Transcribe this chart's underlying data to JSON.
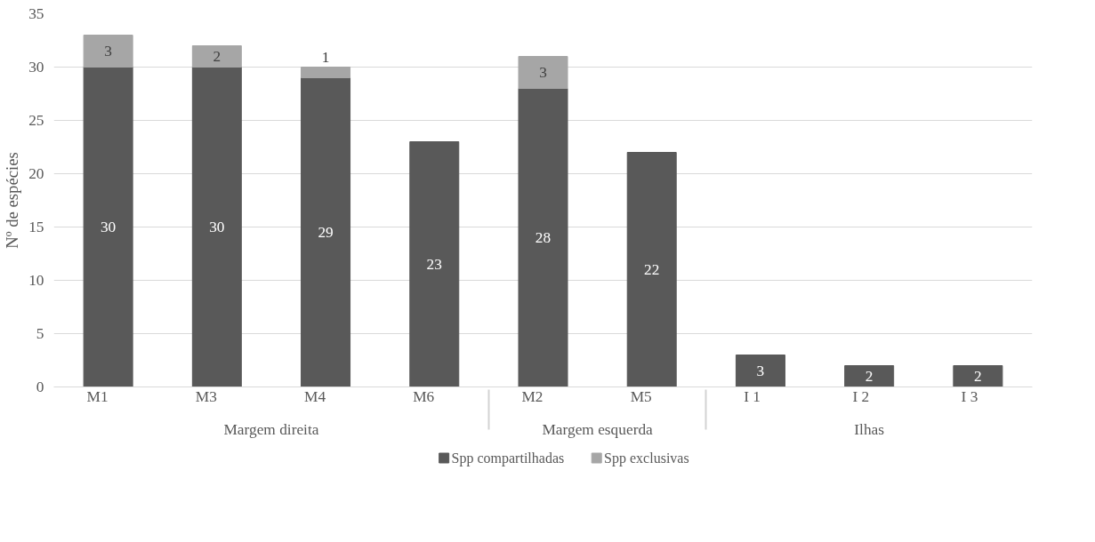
{
  "chart_data": {
    "type": "bar",
    "stacked": true,
    "ylabel": "Nº de espécies",
    "categories": [
      "M1",
      "M3",
      "M4",
      "M6",
      "M2",
      "M5",
      "I 1",
      "I 2",
      "I 3"
    ],
    "annotations": [
      "Margem direita",
      "Margem esquerda",
      "Ilhas"
    ],
    "series": [
      {
        "name": "Spp compartilhadas",
        "color": "#595959",
        "values": [
          30,
          30,
          29,
          23,
          28,
          22,
          3,
          2,
          2
        ]
      },
      {
        "name": "Spp exclusivas",
        "color": "#a6a6a6",
        "values": [
          3,
          2,
          1,
          null,
          3,
          null,
          null,
          null,
          null
        ]
      }
    ],
    "ylim": [
      0,
      35
    ],
    "yticks": [
      0,
      5,
      10,
      15,
      20,
      25,
      30,
      35
    ],
    "grid": "y",
    "legend": "bottom",
    "data_labels": true
  }
}
